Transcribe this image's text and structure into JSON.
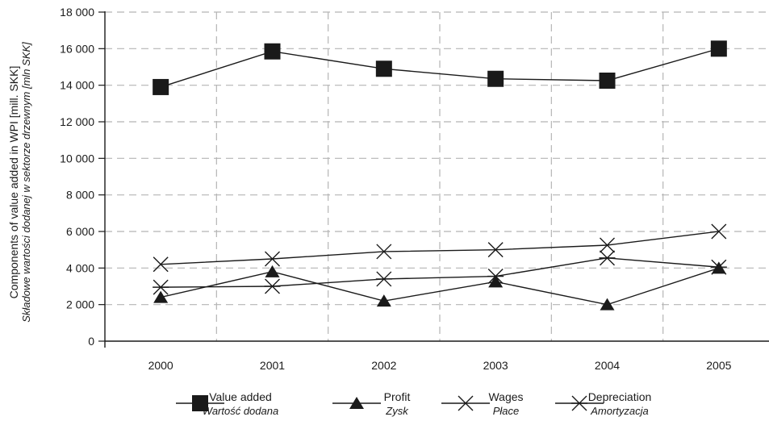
{
  "chart_data": {
    "type": "line",
    "categories": [
      "2000",
      "2001",
      "2002",
      "2003",
      "2004",
      "2005"
    ],
    "ylabel": "Components of value added in WPI [mill. SKK]",
    "ylabel_secondary": "Składowe wartości dodanej w sektorze drzewnym [mln SKK]",
    "ylim": [
      0,
      18000
    ],
    "yticks": [
      0,
      2000,
      4000,
      6000,
      8000,
      10000,
      12000,
      14000,
      16000,
      18000
    ],
    "ytick_labels": [
      "0",
      "2 000",
      "4 000",
      "6 000",
      "8 000",
      "10 000",
      "12 000",
      "14 000",
      "16 000",
      "18 000"
    ],
    "grid": true,
    "legend_position": "bottom",
    "series": [
      {
        "name": "Value added",
        "name_pl": "Wartość dodana",
        "marker": "square",
        "values": [
          13900,
          15850,
          14900,
          14350,
          14250,
          16000
        ]
      },
      {
        "name": "Profit",
        "name_pl": "Zysk",
        "marker": "triangle",
        "values": [
          2400,
          3800,
          2200,
          3250,
          2000,
          4000
        ]
      },
      {
        "name": "Wages",
        "name_pl": "Płace",
        "marker": "x",
        "values": [
          4200,
          4500,
          4900,
          5000,
          5250,
          6000
        ]
      },
      {
        "name": "Depreciation",
        "name_pl": "Amortyzacja",
        "marker": "asterisk",
        "values": [
          2950,
          3000,
          3400,
          3550,
          4550,
          4050
        ]
      }
    ]
  }
}
